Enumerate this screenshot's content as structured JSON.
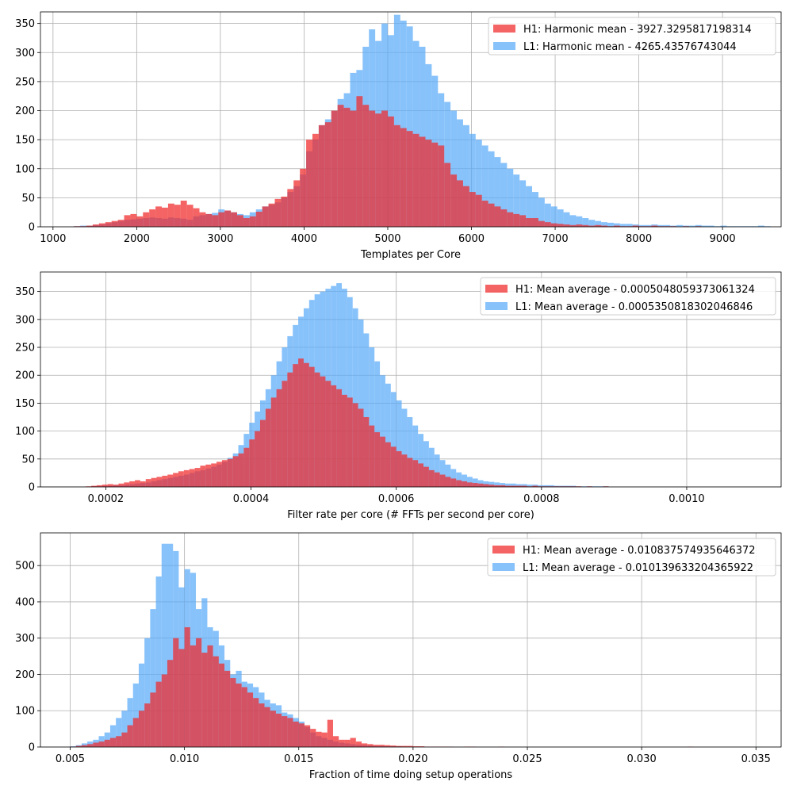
{
  "colors": {
    "h1": "#f0282a",
    "l1": "#5aaaf8",
    "overlap": "#8b8bbf",
    "grid": "#b0b0b0"
  },
  "chart_data": [
    {
      "type": "bar",
      "subtype": "histogram",
      "xlabel": "Templates per Core",
      "xlim": [
        850,
        9700
      ],
      "ylim": [
        0,
        370
      ],
      "xticks": [
        1000,
        2000,
        3000,
        4000,
        5000,
        6000,
        7000,
        8000,
        9000
      ],
      "xtick_labels": [
        "1000",
        "2000",
        "3000",
        "4000",
        "5000",
        "6000",
        "7000",
        "8000",
        "9000"
      ],
      "yticks": [
        0,
        50,
        100,
        150,
        200,
        250,
        300,
        350
      ],
      "ytick_labels": [
        "0",
        "50",
        "100",
        "150",
        "200",
        "250",
        "300",
        "350"
      ],
      "grid": true,
      "legend_position": "top-right",
      "series": [
        {
          "name": "H1: Harmonic mean  - 3927.3295817198314",
          "bin_start": 1250,
          "bin_width": 75,
          "counts": [
            1,
            1,
            2,
            4,
            6,
            8,
            10,
            12,
            20,
            22,
            18,
            25,
            30,
            35,
            33,
            40,
            38,
            45,
            38,
            32,
            25,
            22,
            20,
            25,
            28,
            25,
            20,
            15,
            18,
            26,
            35,
            40,
            48,
            52,
            65,
            80,
            100,
            150,
            160,
            175,
            180,
            200,
            210,
            205,
            200,
            225,
            210,
            200,
            195,
            200,
            190,
            175,
            170,
            165,
            160,
            155,
            150,
            145,
            140,
            110,
            90,
            80,
            70,
            60,
            55,
            45,
            40,
            35,
            30,
            25,
            22,
            20,
            15,
            15,
            10,
            8,
            6,
            5,
            4,
            3,
            4,
            3,
            2,
            3,
            2,
            1,
            2,
            1,
            1,
            2,
            1,
            1,
            2,
            1,
            1,
            1,
            0,
            1,
            0,
            1,
            0,
            0,
            0,
            0,
            0,
            0,
            0,
            0,
            0,
            0,
            0
          ]
        },
        {
          "name": "L1: Harmonic mean  - 4265.43576743044",
          "bin_start": 1250,
          "bin_width": 75,
          "counts": [
            1,
            2,
            2,
            3,
            4,
            6,
            8,
            10,
            12,
            13,
            14,
            15,
            16,
            15,
            14,
            16,
            15,
            14,
            12,
            18,
            20,
            22,
            24,
            30,
            28,
            25,
            22,
            20,
            25,
            30,
            35,
            38,
            42,
            50,
            60,
            70,
            90,
            130,
            150,
            175,
            185,
            200,
            220,
            230,
            265,
            270,
            310,
            340,
            320,
            350,
            330,
            365,
            355,
            345,
            320,
            310,
            280,
            260,
            230,
            215,
            200,
            185,
            175,
            160,
            150,
            140,
            130,
            120,
            110,
            100,
            90,
            80,
            70,
            60,
            50,
            40,
            35,
            30,
            25,
            20,
            18,
            15,
            12,
            10,
            8,
            7,
            6,
            5,
            5,
            4,
            3,
            3,
            4,
            3,
            3,
            2,
            3,
            2,
            2,
            3,
            2,
            2,
            1,
            2,
            1,
            1,
            1,
            1,
            1,
            2,
            1,
            0
          ]
        }
      ]
    },
    {
      "type": "bar",
      "subtype": "histogram",
      "xlabel": "Filter rate per core (# FFTs per second per core)",
      "xlim": [
        0.00011,
        0.00113
      ],
      "ylim": [
        0,
        385
      ],
      "xticks": [
        0.0002,
        0.0004,
        0.0006,
        0.0008,
        0.001
      ],
      "xtick_labels": [
        "0.0002",
        "0.0004",
        "0.0006",
        "0.0008",
        "0.0010"
      ],
      "yticks": [
        0,
        50,
        100,
        150,
        200,
        250,
        300,
        350
      ],
      "ytick_labels": [
        "0",
        "50",
        "100",
        "150",
        "200",
        "250",
        "300",
        "350"
      ],
      "grid": true,
      "legend_position": "top-right",
      "series": [
        {
          "name": "H1: Mean average - 0.0005048059373061324",
          "bin_start": 0.00015,
          "bin_width": 7.5e-06,
          "counts": [
            0,
            0,
            0,
            1,
            2,
            3,
            4,
            5,
            4,
            6,
            8,
            10,
            12,
            10,
            14,
            16,
            18,
            20,
            22,
            25,
            28,
            30,
            32,
            34,
            38,
            40,
            42,
            45,
            48,
            50,
            55,
            60,
            70,
            85,
            100,
            120,
            140,
            160,
            175,
            190,
            205,
            220,
            230,
            222,
            215,
            205,
            198,
            190,
            182,
            175,
            165,
            160,
            150,
            140,
            125,
            110,
            98,
            90,
            80,
            72,
            64,
            58,
            52,
            48,
            42,
            36,
            30,
            26,
            22,
            18,
            15,
            12,
            10,
            8,
            7,
            6,
            5,
            4,
            3,
            3,
            2,
            2,
            2,
            2,
            1,
            2,
            1,
            1,
            1,
            1,
            1,
            1,
            1,
            1,
            0,
            1,
            0,
            0,
            1,
            0,
            0,
            0,
            0,
            0,
            0,
            0,
            0,
            0,
            0,
            0
          ]
        },
        {
          "name": "L1: Mean average - 0.0005350818302046846",
          "bin_start": 0.00015,
          "bin_width": 7.5e-06,
          "counts": [
            0,
            0,
            0,
            0,
            1,
            1,
            2,
            2,
            3,
            3,
            4,
            5,
            6,
            7,
            8,
            10,
            12,
            14,
            16,
            18,
            20,
            22,
            25,
            28,
            30,
            33,
            36,
            40,
            45,
            52,
            60,
            75,
            95,
            115,
            135,
            155,
            175,
            200,
            225,
            250,
            270,
            290,
            305,
            320,
            335,
            345,
            350,
            355,
            360,
            365,
            355,
            340,
            320,
            300,
            275,
            250,
            225,
            200,
            185,
            170,
            155,
            140,
            125,
            110,
            95,
            82,
            70,
            58,
            48,
            40,
            32,
            26,
            22,
            18,
            15,
            12,
            10,
            9,
            8,
            7,
            6,
            6,
            5,
            5,
            4,
            4,
            3,
            3,
            3,
            2,
            2,
            2,
            2,
            1,
            1,
            1,
            1,
            1,
            1,
            0,
            0,
            0,
            0,
            0,
            0,
            0,
            0,
            0,
            0,
            0
          ]
        }
      ]
    },
    {
      "type": "bar",
      "subtype": "histogram",
      "xlabel": "Fraction of time doing setup operations",
      "xlim": [
        0.0037,
        0.0361
      ],
      "ylim": [
        0,
        590
      ],
      "xticks": [
        0.005,
        0.01,
        0.015,
        0.02,
        0.025,
        0.03,
        0.035
      ],
      "xtick_labels": [
        "0.005",
        "0.010",
        "0.015",
        "0.020",
        "0.025",
        "0.030",
        "0.035"
      ],
      "yticks": [
        0,
        100,
        200,
        300,
        400,
        500
      ],
      "ytick_labels": [
        "0",
        "100",
        "200",
        "300",
        "400",
        "500"
      ],
      "grid": true,
      "legend_position": "top-right",
      "series": [
        {
          "name": "H1: Mean average - 0.010837574935646372",
          "bin_start": 0.005,
          "bin_width": 0.00025,
          "counts": [
            1,
            3,
            5,
            8,
            12,
            15,
            20,
            25,
            30,
            40,
            60,
            80,
            100,
            120,
            150,
            180,
            200,
            240,
            300,
            270,
            330,
            280,
            300,
            260,
            280,
            250,
            230,
            210,
            190,
            175,
            165,
            150,
            135,
            120,
            110,
            100,
            92,
            85,
            80,
            70,
            65,
            60,
            50,
            42,
            40,
            75,
            30,
            20,
            20,
            25,
            15,
            10,
            8,
            6,
            6,
            5,
            4,
            3,
            3,
            3,
            2,
            2,
            1,
            1,
            1,
            1,
            1,
            0,
            0,
            1,
            1,
            0,
            0,
            0,
            0,
            1,
            0,
            0,
            0,
            0,
            0,
            0,
            0,
            0,
            0,
            0,
            0,
            0,
            0,
            0,
            0,
            0,
            0,
            0,
            0,
            0,
            0,
            0,
            0,
            0,
            0,
            0,
            0,
            0,
            0,
            0,
            0,
            0,
            1,
            0,
            0,
            0,
            0,
            0,
            0,
            0,
            0,
            0,
            0,
            0,
            0
          ]
        },
        {
          "name": "L1: Mean average - 0.010139633204365922",
          "bin_start": 0.005,
          "bin_width": 0.00025,
          "counts": [
            2,
            5,
            10,
            15,
            20,
            30,
            40,
            60,
            80,
            100,
            135,
            175,
            230,
            300,
            380,
            470,
            560,
            560,
            540,
            440,
            490,
            480,
            380,
            410,
            330,
            320,
            280,
            240,
            200,
            210,
            180,
            175,
            165,
            150,
            130,
            120,
            115,
            95,
            90,
            80,
            70,
            55,
            40,
            30,
            25,
            20,
            15,
            12,
            10,
            8,
            6,
            5,
            4,
            3,
            3,
            2,
            2,
            2,
            1,
            1,
            1,
            1,
            1,
            1,
            0,
            0,
            1,
            0,
            0,
            0,
            0,
            0,
            0,
            0,
            0,
            0,
            0,
            0,
            0,
            0,
            0,
            0,
            0,
            0,
            0,
            0,
            0,
            0,
            0,
            0,
            0,
            0,
            0,
            0,
            0,
            0,
            0,
            0,
            0,
            0,
            0,
            0,
            0,
            0,
            0,
            0,
            0,
            0,
            0,
            0,
            0,
            0,
            0,
            0,
            0,
            0,
            0,
            0,
            0,
            0,
            1
          ]
        }
      ]
    }
  ]
}
